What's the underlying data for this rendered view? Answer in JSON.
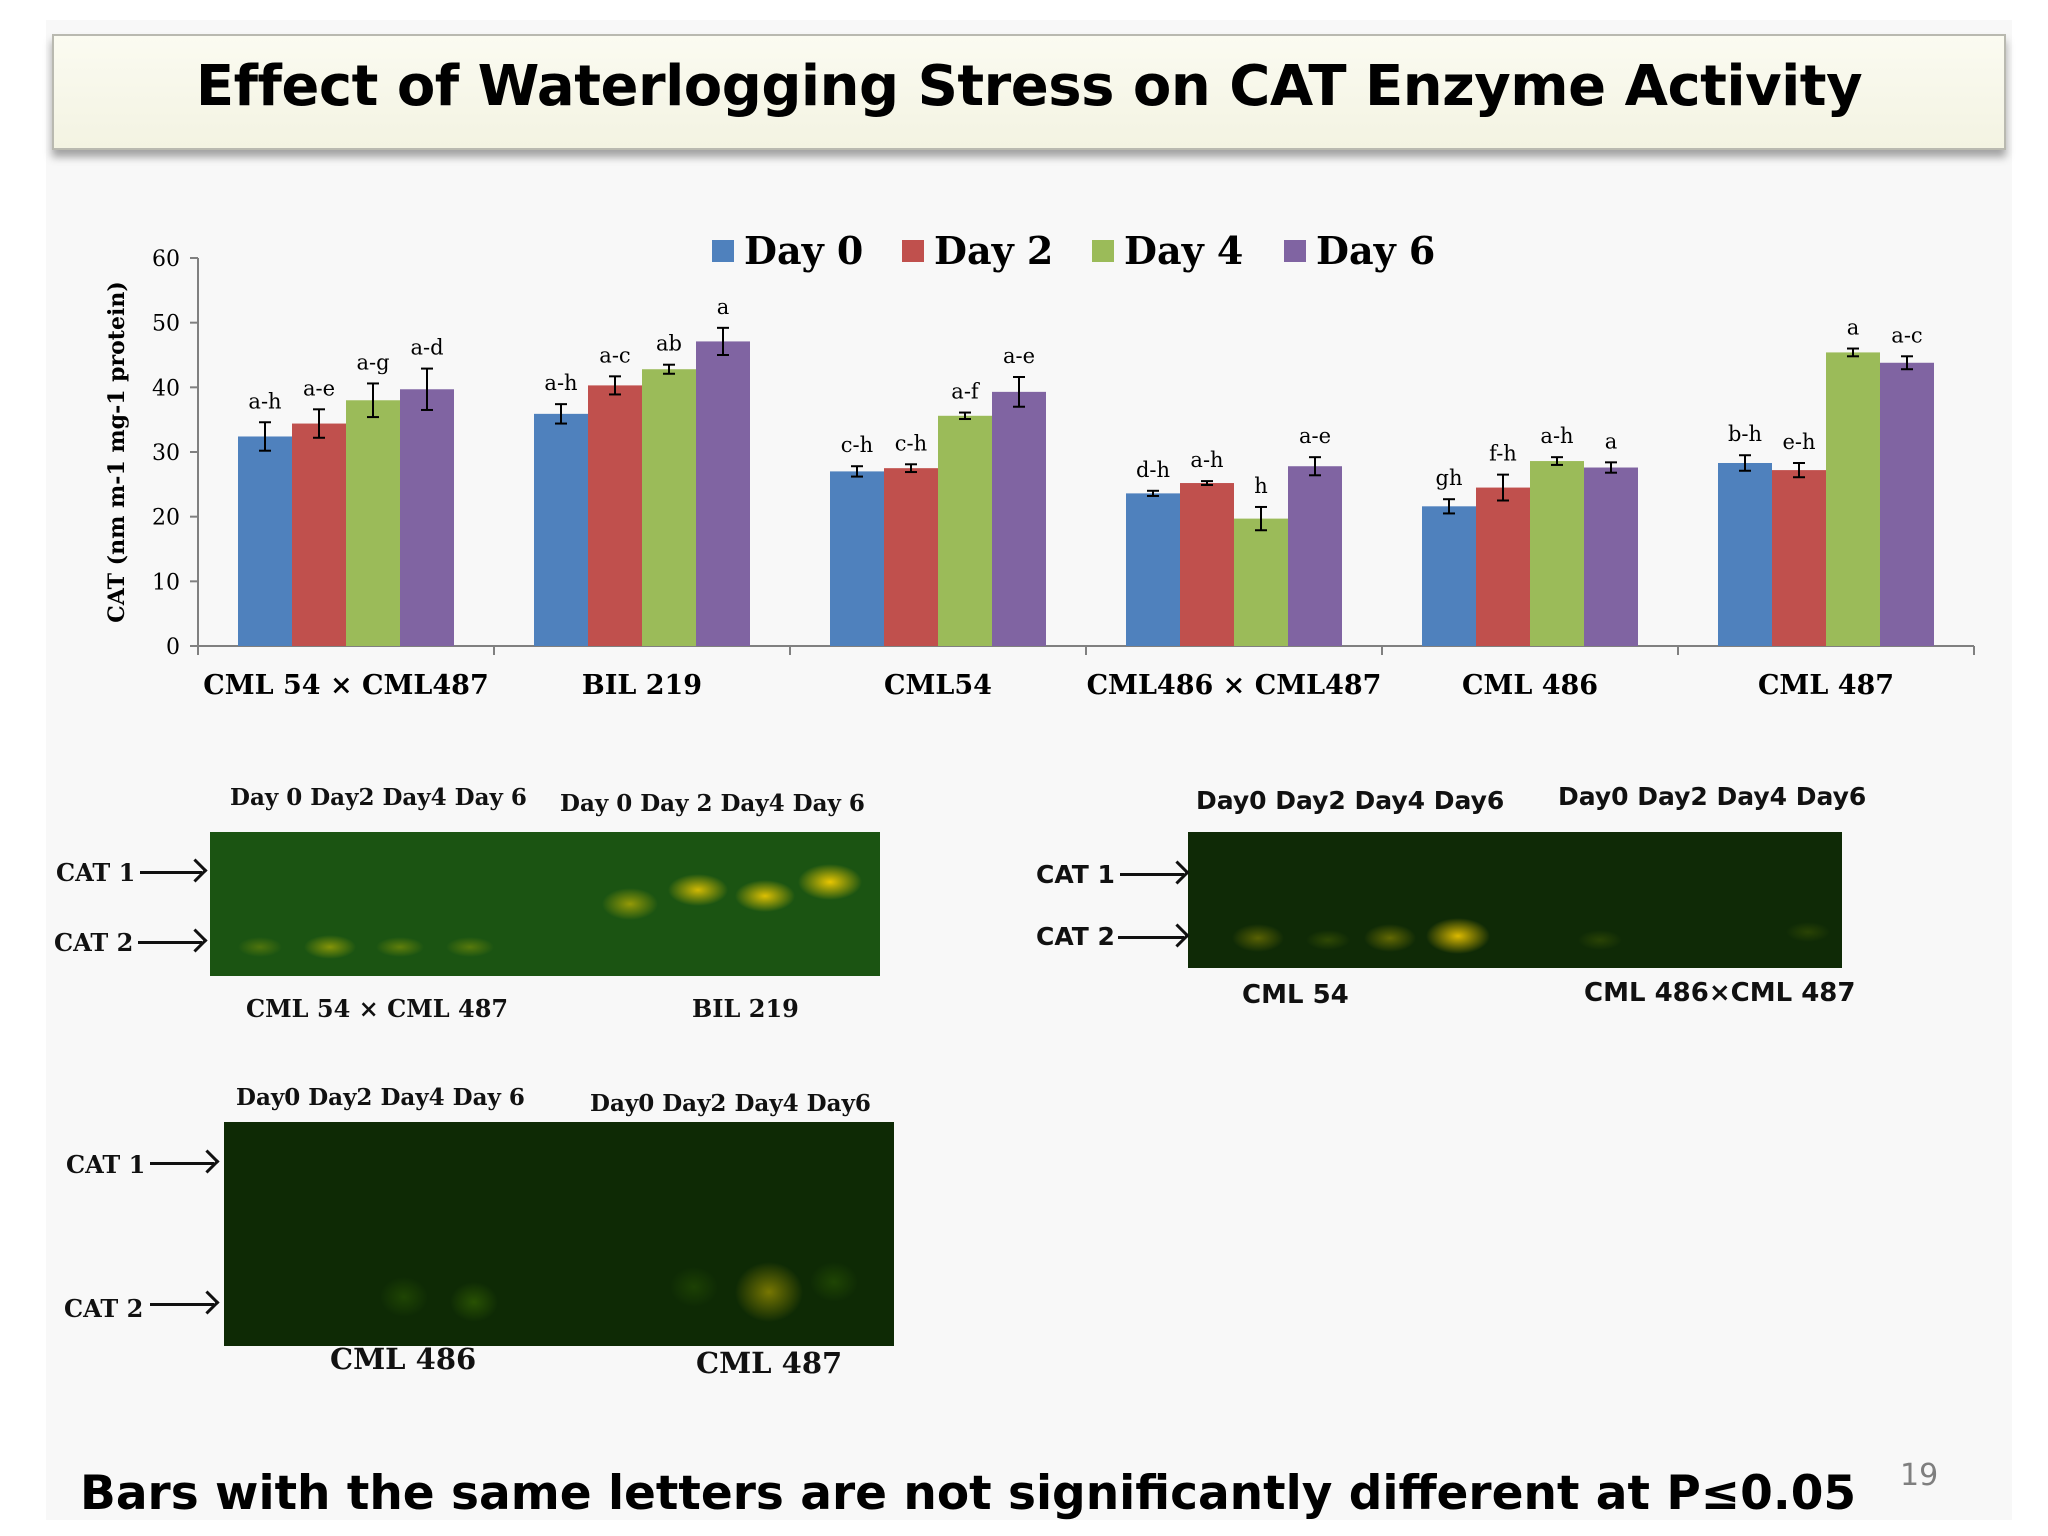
{
  "slide": {
    "title": "Effect of Waterlogging Stress on CAT Enzyme Activity",
    "footnote": "Bars with the same letters are not significantly different at P≤0.05",
    "page_number": "19"
  },
  "chart_data": {
    "type": "bar",
    "title": "",
    "xlabel": "",
    "ylabel": "CAT (nm m-1 mg-1 protein)",
    "ylim": [
      0,
      60
    ],
    "yticks": [
      0,
      10,
      20,
      30,
      40,
      50,
      60
    ],
    "grid": false,
    "legend_position": "top-center",
    "categories": [
      "CML 54 × CML487",
      "BIL 219",
      "CML54",
      "CML486 × CML487",
      "CML 486",
      "CML 487"
    ],
    "series": [
      {
        "name": "Day 0",
        "color": "#4f81bd",
        "values": [
          32.4,
          35.9,
          27.0,
          23.6,
          21.6,
          28.3
        ],
        "errors": [
          2.2,
          1.5,
          0.8,
          0.4,
          1.1,
          1.2
        ],
        "letters": [
          "a-h",
          "a-h",
          "c-h",
          "d-h",
          "gh",
          "b-h"
        ]
      },
      {
        "name": "Day 2",
        "color": "#c0504d",
        "values": [
          34.4,
          40.3,
          27.5,
          25.2,
          24.5,
          27.2
        ],
        "errors": [
          2.2,
          1.4,
          0.6,
          0.3,
          2.0,
          1.1
        ],
        "letters": [
          "a-e",
          "a-c",
          "c-h",
          "a-h",
          "f-h",
          "e-h"
        ]
      },
      {
        "name": "Day 4",
        "color": "#9bbb59",
        "values": [
          38.0,
          42.8,
          35.6,
          19.7,
          28.6,
          45.4
        ],
        "errors": [
          2.6,
          0.7,
          0.5,
          1.8,
          0.6,
          0.6
        ],
        "letters": [
          "a-g",
          "ab",
          "a-f",
          "h",
          "a-h",
          "a"
        ]
      },
      {
        "name": "Day 6",
        "color": "#8064a2",
        "values": [
          39.7,
          47.1,
          39.3,
          27.8,
          27.6,
          43.8
        ],
        "errors": [
          3.2,
          2.1,
          2.3,
          1.4,
          0.8,
          1.0
        ],
        "letters": [
          "a-d",
          "a",
          "a-e",
          "a-e",
          "a",
          "a-c"
        ]
      }
    ]
  },
  "gels": [
    {
      "id": "gel-1",
      "bands": [
        "CAT 1",
        "CAT 2"
      ],
      "day_labels": [
        "Day 0  Day2 Day4 Day 6",
        "Day 0  Day 2  Day4 Day 6"
      ],
      "genotypes": [
        "CML 54 × CML 487",
        "BIL 219"
      ]
    },
    {
      "id": "gel-2",
      "bands": [
        "CAT 1",
        "CAT 2"
      ],
      "day_labels": [
        "Day0  Day2 Day4 Day6",
        "Day0  Day2  Day4 Day6"
      ],
      "genotypes": [
        "CML 54",
        "CML 486×CML 487"
      ]
    },
    {
      "id": "gel-3",
      "bands": [
        "CAT 1",
        "CAT 2"
      ],
      "day_labels": [
        "Day0 Day2  Day4 Day 6",
        "Day0  Day2  Day4  Day6"
      ],
      "genotypes": [
        "CML 486",
        "CML 487"
      ]
    }
  ]
}
